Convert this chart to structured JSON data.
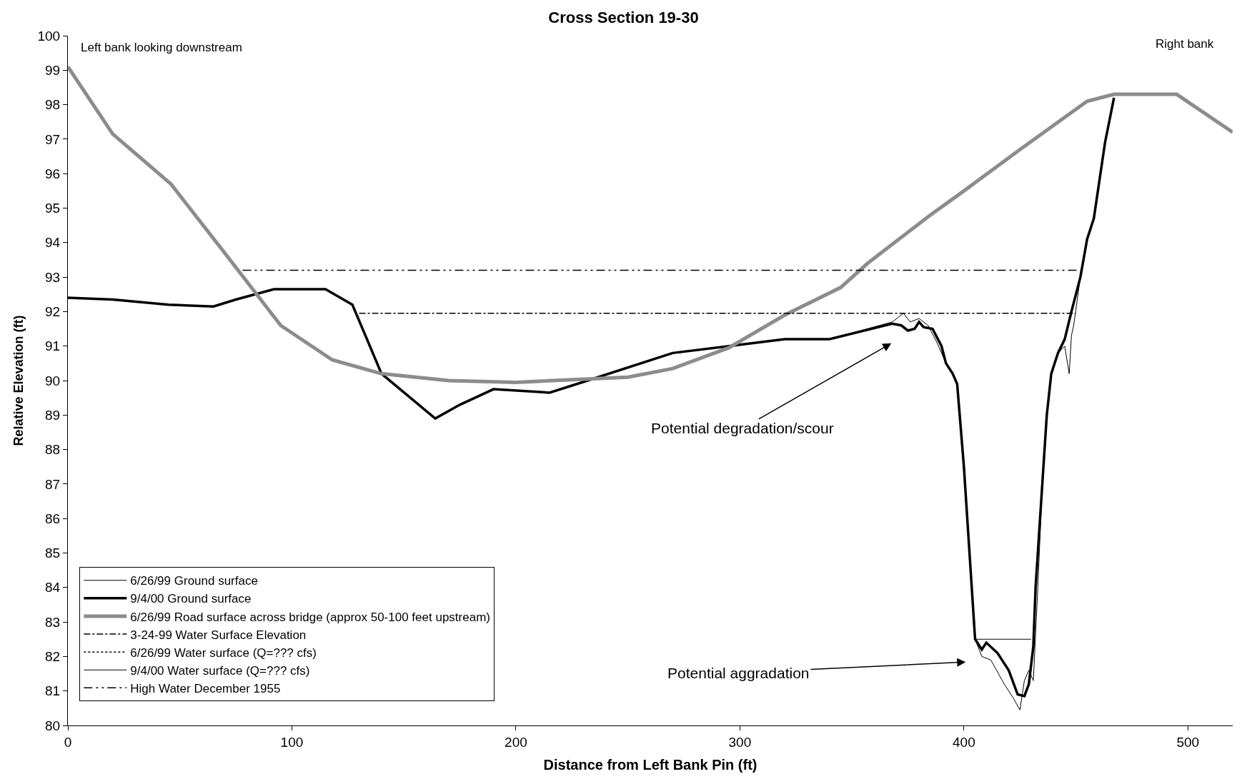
{
  "chart_data": {
    "type": "line",
    "title": "Cross Section 19-30",
    "xlabel": "Distance from Left Bank Pin (ft)",
    "ylabel": "Relative Elevation (ft)",
    "xlim": [
      0,
      520
    ],
    "xticks": [
      0,
      100,
      200,
      300,
      400,
      500
    ],
    "ylim": [
      80,
      100
    ],
    "yticks": [
      80,
      81,
      82,
      83,
      84,
      85,
      86,
      87,
      88,
      89,
      90,
      91,
      92,
      93,
      94,
      95,
      96,
      97,
      98,
      99,
      100
    ],
    "grid": false,
    "legend": "bottom left",
    "marker": "none",
    "series": [
      {
        "name": "6/26/99 Ground surface",
        "color": "#000000",
        "line_style": "solid",
        "x": [
          0,
          20,
          45,
          65,
          75,
          92,
          115,
          127,
          140,
          164,
          175,
          190,
          215,
          232,
          270,
          295,
          320,
          340,
          368,
          373,
          376,
          380,
          384,
          388,
          392,
          395,
          397,
          400,
          403,
          405,
          408,
          412,
          418,
          422,
          425,
          427,
          429,
          431,
          433,
          435,
          437,
          439,
          442,
          445,
          447,
          448,
          449,
          452,
          455,
          458,
          463,
          467
        ],
        "values": [
          92.4,
          92.35,
          92.2,
          92.15,
          92.35,
          92.65,
          92.65,
          92.2,
          90.2,
          88.9,
          89.3,
          89.75,
          89.65,
          90.0,
          90.8,
          91.0,
          91.2,
          91.2,
          91.7,
          91.95,
          91.7,
          91.8,
          91.6,
          91.1,
          90.5,
          90.2,
          89.9,
          87.5,
          84.5,
          82.5,
          82.0,
          81.9,
          81.2,
          80.8,
          80.45,
          81.3,
          81.6,
          81.3,
          84.0,
          87.0,
          89.0,
          90.2,
          90.8,
          91.0,
          90.2,
          91.3,
          91.6,
          93.0,
          94.1,
          94.7,
          96.9,
          98.2
        ]
      },
      {
        "name": "9/4/00 Ground surface",
        "color": "#000000",
        "line_style": "solid",
        "x": [
          0,
          20,
          45,
          65,
          75,
          92,
          115,
          127,
          140,
          164,
          175,
          190,
          215,
          232,
          270,
          295,
          320,
          340,
          368,
          372,
          375,
          378,
          380,
          382,
          386,
          390,
          392,
          395,
          397,
          400,
          403,
          405,
          408,
          410,
          415,
          420,
          424,
          427,
          429,
          431,
          432,
          435,
          437,
          439,
          442,
          445,
          448,
          452,
          455,
          458,
          463,
          467
        ],
        "values": [
          92.4,
          92.35,
          92.2,
          92.15,
          92.35,
          92.65,
          92.65,
          92.2,
          90.2,
          88.9,
          89.3,
          89.75,
          89.65,
          90.0,
          90.8,
          91.0,
          91.2,
          91.2,
          91.65,
          91.6,
          91.45,
          91.5,
          91.7,
          91.55,
          91.5,
          91.0,
          90.5,
          90.2,
          89.9,
          87.5,
          84.5,
          82.5,
          82.2,
          82.4,
          82.1,
          81.6,
          80.9,
          80.85,
          81.2,
          82.3,
          84.0,
          87.0,
          89.0,
          90.2,
          90.8,
          91.2,
          92.0,
          93.0,
          94.1,
          94.7,
          96.9,
          98.2
        ]
      },
      {
        "name": "6/26/99 Road surface across bridge (approx 50-100 feet upstream)",
        "color": "#8c8c8c",
        "line_style": "solid",
        "x": [
          0,
          20,
          46,
          70,
          95,
          118,
          140,
          170,
          200,
          250,
          270,
          295,
          320,
          345,
          357,
          385,
          400,
          425,
          455,
          467,
          495,
          520
        ],
        "values": [
          99.1,
          97.15,
          95.7,
          93.7,
          91.6,
          90.6,
          90.2,
          90.0,
          89.95,
          90.1,
          90.35,
          90.95,
          91.9,
          92.7,
          93.4,
          94.8,
          95.5,
          96.7,
          98.1,
          98.3,
          98.3,
          97.2
        ]
      },
      {
        "name": "3-24-99 Water Surface Elevation",
        "color": "#000000",
        "line_style": "dashdot",
        "x": [
          130,
          450
        ],
        "values": [
          91.95,
          91.95
        ]
      },
      {
        "name": "6/26/99 Water surface (Q=??? cfs)",
        "color": "#000000",
        "line_style": "dotted",
        "values": [
          null
        ]
      },
      {
        "name": "9/4/00 Water surface (Q=??? cfs)",
        "color": "#000000",
        "line_style": "solid",
        "x": [
          405,
          430
        ],
        "values": [
          82.5,
          82.5
        ]
      },
      {
        "name": "High Water December 1955",
        "color": "#000000",
        "line_style": "dashdotdot",
        "x": [
          78,
          452
        ],
        "values": [
          93.2,
          93.2
        ]
      }
    ],
    "annotations": [
      "Left bank looking downstream",
      "Right bank",
      "Potential degradation/scour",
      "Potential aggradation"
    ]
  }
}
